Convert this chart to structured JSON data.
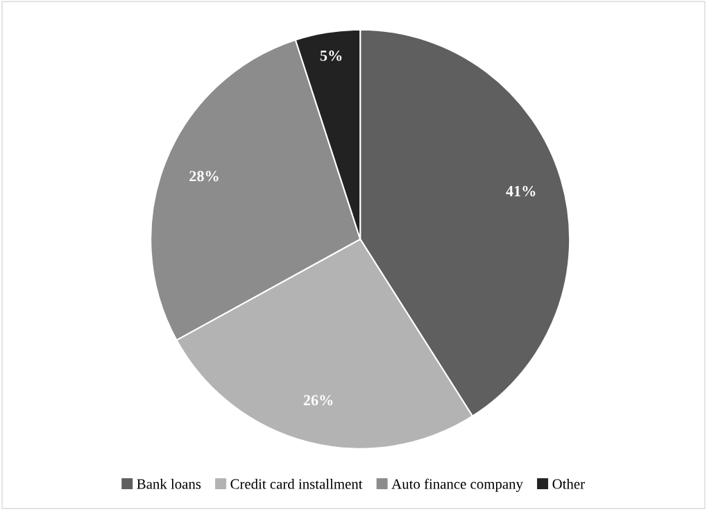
{
  "chart_data": {
    "type": "pie",
    "categories": [
      "Bank loans",
      "Credit card installment",
      "Auto finance company",
      "Other"
    ],
    "values": [
      41,
      26,
      28,
      5
    ],
    "colors": [
      "#5f5f5f",
      "#b3b3b3",
      "#8c8c8c",
      "#222222"
    ],
    "value_labels": [
      "41%",
      "26%",
      "28%",
      "5%"
    ],
    "legend": "bottom"
  }
}
